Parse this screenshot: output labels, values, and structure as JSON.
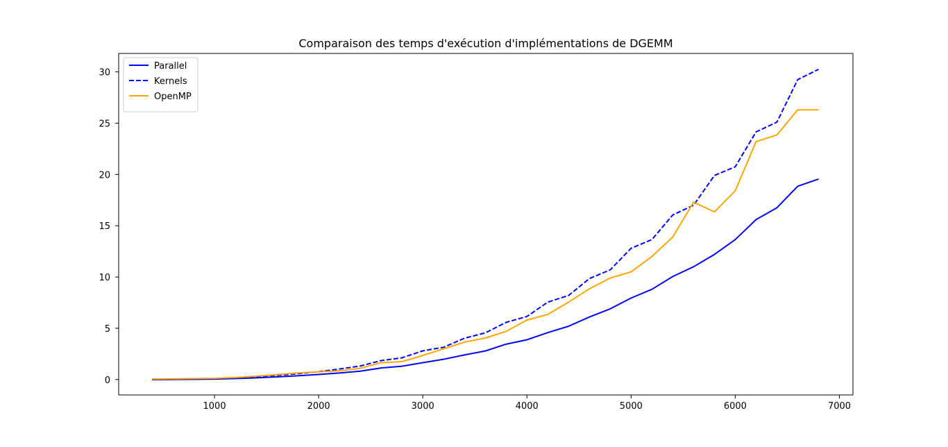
{
  "chart_data": {
    "type": "line",
    "title": "Comparaison des temps d'exécution d'implémentations de DGEMM",
    "xlabel": "",
    "ylabel": "",
    "xlim": [
      80,
      7130
    ],
    "ylim": [
      -1.5,
      31.8
    ],
    "xticks": [
      1000,
      2000,
      3000,
      4000,
      5000,
      6000,
      7000
    ],
    "xtick_labels": [
      "1000",
      "2000",
      "3000",
      "4000",
      "5000",
      "6000",
      "7000"
    ],
    "yticks": [
      0,
      5,
      10,
      15,
      20,
      25,
      30
    ],
    "ytick_labels": [
      "0",
      "5",
      "10",
      "15",
      "20",
      "25",
      "30"
    ],
    "grid": false,
    "legend_position": "upper-left",
    "x": [
      400,
      600,
      800,
      1000,
      1200,
      1400,
      1600,
      1800,
      2000,
      2200,
      2400,
      2600,
      2800,
      3000,
      3200,
      3400,
      3600,
      3800,
      4000,
      4200,
      4400,
      4600,
      4800,
      5000,
      5200,
      5400,
      5600,
      5800,
      6000,
      6200,
      6400,
      6600,
      6800
    ],
    "series": [
      {
        "name": "Parallel",
        "color": "#0000ff",
        "dash": "solid",
        "values": [
          0.0,
          0.01,
          0.02,
          0.05,
          0.1,
          0.17,
          0.26,
          0.37,
          0.5,
          0.64,
          0.82,
          1.13,
          1.3,
          1.65,
          1.98,
          2.4,
          2.79,
          3.45,
          3.88,
          4.58,
          5.2,
          6.1,
          6.9,
          7.95,
          8.8,
          10.05,
          11.0,
          12.2,
          13.65,
          15.6,
          16.75,
          18.85,
          19.55
        ]
      },
      {
        "name": "Kernels",
        "color": "#0000ff",
        "dash": "dashed",
        "values": [
          0.0,
          0.02,
          0.05,
          0.1,
          0.17,
          0.28,
          0.41,
          0.57,
          0.77,
          1.03,
          1.32,
          1.85,
          2.12,
          2.8,
          3.15,
          4.03,
          4.55,
          5.58,
          6.15,
          7.55,
          8.2,
          9.85,
          10.7,
          12.8,
          13.65,
          16.05,
          17.0,
          19.9,
          20.75,
          24.15,
          25.1,
          29.25,
          30.25
        ]
      },
      {
        "name": "OpenMP",
        "color": "#ffa500",
        "dash": "solid",
        "values": [
          0.05,
          0.07,
          0.1,
          0.12,
          0.2,
          0.33,
          0.48,
          0.65,
          0.75,
          0.85,
          1.1,
          1.65,
          1.75,
          2.35,
          3.0,
          3.65,
          4.05,
          4.7,
          5.8,
          6.35,
          7.55,
          8.85,
          9.9,
          10.5,
          12.0,
          13.9,
          17.3,
          16.35,
          18.4,
          23.2,
          23.85,
          26.3,
          26.3
        ]
      }
    ]
  }
}
